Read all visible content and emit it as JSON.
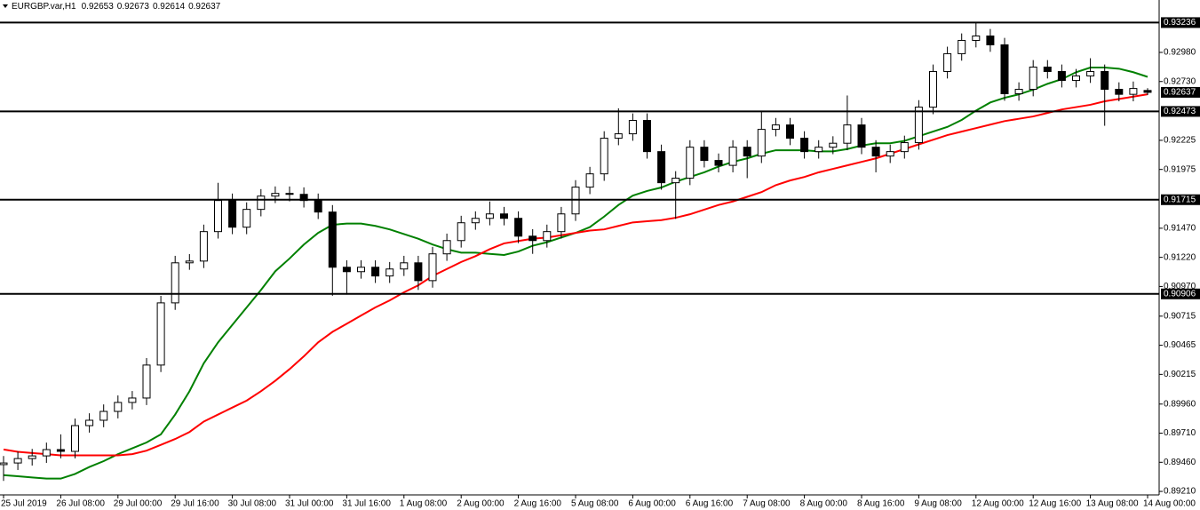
{
  "chart_data": {
    "type": "candlestick",
    "symbol": "EURGBP.var,H1",
    "categories": [
      "25 Jul 2019",
      null,
      null,
      null,
      "26 Jul 08:00",
      null,
      null,
      null,
      "29 Jul 00:00",
      null,
      null,
      null,
      "29 Jul 16:00",
      null,
      null,
      null,
      "30 Jul 08:00",
      null,
      null,
      null,
      "31 Jul 00:00",
      null,
      null,
      null,
      "31 Jul 16:00",
      null,
      null,
      null,
      "1 Aug 08:00",
      null,
      null,
      null,
      "2 Aug 00:00",
      null,
      null,
      null,
      "2 Aug 16:00",
      null,
      null,
      null,
      "5 Aug 08:00",
      null,
      null,
      null,
      "6 Aug 00:00",
      null,
      null,
      null,
      "6 Aug 16:00",
      null,
      null,
      null,
      "7 Aug 08:00",
      null,
      null,
      null,
      "8 Aug 00:00",
      null,
      null,
      null,
      "8 Aug 16:00",
      null,
      null,
      null,
      "9 Aug 08:00",
      null,
      null,
      null,
      "12 Aug 00:00",
      null,
      null,
      null,
      "12 Aug 16:00",
      null,
      null,
      null,
      "13 Aug 08:00",
      null,
      null,
      null,
      "14 Aug 00:00"
    ],
    "candles": {
      "open": [
        0.8944,
        0.89454,
        0.89492,
        0.89515,
        0.89569,
        0.89554,
        0.89775,
        0.89821,
        0.89897,
        0.89974,
        0.90012,
        0.90295,
        0.90829,
        0.91173,
        0.91188,
        0.91441,
        0.91708,
        0.91479,
        0.91632,
        0.91746,
        0.91769,
        0.91761,
        0.91708,
        0.91609,
        0.91135,
        0.91097,
        0.91135,
        0.9106,
        0.9112,
        0.91173,
        0.9102,
        0.9125,
        0.91364,
        0.91517,
        0.91555,
        0.91593,
        0.91555,
        0.91402,
        0.91364,
        0.91441,
        0.91593,
        0.91823,
        0.91937,
        0.92243,
        0.92281,
        0.92396,
        0.92128,
        0.91861,
        0.919,
        0.92166,
        0.92052,
        0.9201,
        0.92166,
        0.9209,
        0.92319,
        0.92357,
        0.92243,
        0.92128,
        0.92166,
        0.922,
        0.92357,
        0.92166,
        0.9209,
        0.92128,
        0.92205,
        0.9251,
        0.92816,
        0.92969,
        0.93083,
        0.93121,
        0.93045,
        0.92625,
        0.92663,
        0.92854,
        0.92816,
        0.92739,
        0.92778,
        0.92816,
        0.92663,
        0.9262,
        0.92653
      ],
      "high": [
        0.89514,
        0.89552,
        0.89575,
        0.89629,
        0.897,
        0.89835,
        0.89881,
        0.89957,
        0.90034,
        0.90072,
        0.90355,
        0.90889,
        0.91233,
        0.91248,
        0.91501,
        0.9186,
        0.91768,
        0.91692,
        0.91806,
        0.91829,
        0.91829,
        0.91821,
        0.91768,
        0.91669,
        0.91195,
        0.91195,
        0.91195,
        0.9118,
        0.91233,
        0.91233,
        0.9131,
        0.91424,
        0.91577,
        0.91615,
        0.917,
        0.91653,
        0.91615,
        0.91462,
        0.91501,
        0.91653,
        0.91883,
        0.91997,
        0.92303,
        0.925,
        0.92456,
        0.92456,
        0.92188,
        0.9196,
        0.92226,
        0.92226,
        0.92112,
        0.92226,
        0.92226,
        0.92473,
        0.92417,
        0.92417,
        0.92303,
        0.92226,
        0.9226,
        0.9261,
        0.92417,
        0.92226,
        0.92188,
        0.92265,
        0.9257,
        0.92876,
        0.93029,
        0.93143,
        0.93236,
        0.93181,
        0.93105,
        0.92723,
        0.92914,
        0.92914,
        0.92876,
        0.92838,
        0.9293,
        0.92876,
        0.92723,
        0.9273,
        0.92673
      ],
      "low": [
        0.893,
        0.89394,
        0.89432,
        0.89455,
        0.89494,
        0.89494,
        0.89715,
        0.89761,
        0.89837,
        0.89914,
        0.89952,
        0.90235,
        0.90769,
        0.91113,
        0.91128,
        0.91381,
        0.91419,
        0.91419,
        0.91572,
        0.91686,
        0.91701,
        0.91648,
        0.91549,
        0.9089,
        0.909,
        0.91037,
        0.91,
        0.91,
        0.9106,
        0.9094,
        0.9096,
        0.9119,
        0.91304,
        0.91457,
        0.91495,
        0.91495,
        0.91342,
        0.9125,
        0.91304,
        0.91381,
        0.91533,
        0.91763,
        0.91877,
        0.92183,
        0.92221,
        0.92068,
        0.91801,
        0.9155,
        0.9184,
        0.91992,
        0.9195,
        0.9195,
        0.919,
        0.9203,
        0.92259,
        0.92183,
        0.92068,
        0.92068,
        0.92106,
        0.9214,
        0.92106,
        0.9195,
        0.9203,
        0.92068,
        0.92145,
        0.9245,
        0.92756,
        0.92909,
        0.93023,
        0.92985,
        0.92565,
        0.92565,
        0.92603,
        0.92756,
        0.92679,
        0.92679,
        0.92718,
        0.9235,
        0.9256,
        0.9256,
        0.92614
      ],
      "close": [
        0.89454,
        0.89492,
        0.89515,
        0.89569,
        0.89554,
        0.89775,
        0.89821,
        0.89897,
        0.89974,
        0.90012,
        0.90295,
        0.90829,
        0.91173,
        0.91188,
        0.91441,
        0.91708,
        0.91479,
        0.91632,
        0.91746,
        0.91769,
        0.91761,
        0.91708,
        0.91609,
        0.91135,
        0.91097,
        0.91135,
        0.9106,
        0.9112,
        0.91173,
        0.9102,
        0.9125,
        0.91364,
        0.91517,
        0.91555,
        0.91593,
        0.91555,
        0.91402,
        0.91364,
        0.91441,
        0.91593,
        0.91823,
        0.91937,
        0.92243,
        0.92281,
        0.92396,
        0.92128,
        0.91861,
        0.919,
        0.92166,
        0.92052,
        0.9201,
        0.92166,
        0.9209,
        0.92319,
        0.92357,
        0.92243,
        0.92128,
        0.92166,
        0.922,
        0.92357,
        0.92166,
        0.9209,
        0.92128,
        0.92205,
        0.9251,
        0.92816,
        0.92969,
        0.93083,
        0.93121,
        0.93045,
        0.92625,
        0.92663,
        0.92854,
        0.92816,
        0.92739,
        0.92778,
        0.92816,
        0.92663,
        0.9262,
        0.9267,
        0.92637
      ]
    },
    "up_color": "#ffffff",
    "down_color": "#000000",
    "series": [
      {
        "type": "line",
        "color": "#008000",
        "values": [
          0.8935,
          0.8934,
          0.8933,
          0.8932,
          0.8932,
          0.8936,
          0.8942,
          0.8947,
          0.8953,
          0.8958,
          0.8963,
          0.897,
          0.8987,
          0.9007,
          0.9031,
          0.9049,
          0.9064,
          0.9079,
          0.9094,
          0.911,
          0.9121,
          0.9133,
          0.9143,
          0.915,
          0.9151,
          0.9151,
          0.9149,
          0.9146,
          0.9142,
          0.9138,
          0.9133,
          0.9129,
          0.9126,
          0.9126,
          0.9125,
          0.9124,
          0.9127,
          0.9132,
          0.9135,
          0.9139,
          0.9143,
          0.9148,
          0.9157,
          0.9167,
          0.9175,
          0.9179,
          0.9182,
          0.9187,
          0.9191,
          0.9195,
          0.92,
          0.9204,
          0.9207,
          0.9211,
          0.9214,
          0.9214,
          0.9214,
          0.9213,
          0.9213,
          0.9215,
          0.9218,
          0.922,
          0.922,
          0.9222,
          0.9226,
          0.923,
          0.9234,
          0.924,
          0.9248,
          0.9255,
          0.9259,
          0.9262,
          0.9266,
          0.9271,
          0.9275,
          0.9281,
          0.9285,
          0.9285,
          0.9284,
          0.9281,
          0.9277
        ]
      },
      {
        "type": "line",
        "color": "#ff0000",
        "values": [
          0.8957,
          0.8955,
          0.8954,
          0.8953,
          0.8952,
          0.8952,
          0.8952,
          0.8952,
          0.8952,
          0.8953,
          0.8956,
          0.8961,
          0.8966,
          0.8972,
          0.8981,
          0.8987,
          0.8993,
          0.8999,
          0.9007,
          0.9016,
          0.9026,
          0.9037,
          0.9049,
          0.9058,
          0.9065,
          0.9072,
          0.9079,
          0.9085,
          0.9092,
          0.9098,
          0.9106,
          0.9112,
          0.9118,
          0.9123,
          0.9129,
          0.9134,
          0.9136,
          0.9138,
          0.9139,
          0.9141,
          0.9143,
          0.9145,
          0.9146,
          0.9149,
          0.9152,
          0.9153,
          0.9154,
          0.9156,
          0.9159,
          0.9163,
          0.9167,
          0.917,
          0.9174,
          0.9178,
          0.9184,
          0.9188,
          0.9191,
          0.9195,
          0.9198,
          0.9201,
          0.9204,
          0.9207,
          0.9211,
          0.9215,
          0.9219,
          0.9223,
          0.9227,
          0.923,
          0.9233,
          0.9236,
          0.9239,
          0.9241,
          0.9243,
          0.9246,
          0.9249,
          0.9251,
          0.9253,
          0.9256,
          0.9258,
          0.926,
          0.9262
        ]
      }
    ],
    "hlines": [
      0.93236,
      0.92473,
      0.91715,
      0.90906
    ],
    "hline_color": "#000000",
    "ylim": [
      0.8918,
      0.9343
    ],
    "yticks": [
      {
        "value": 0.9298,
        "label": "0.92980"
      },
      {
        "value": 0.9273,
        "label": "0.92730"
      },
      0.92225,
      0.91975,
      {
        "value": 0.9147,
        "label": "0.91470"
      },
      {
        "value": 0.9122,
        "label": "0.91220"
      },
      {
        "value": 0.9097,
        "label": "0.90970"
      },
      0.90715,
      0.90465,
      0.90215,
      {
        "value": 0.8996,
        "label": "0.89960"
      },
      {
        "value": 0.8971,
        "label": "0.89710"
      },
      {
        "value": 0.8946,
        "label": "0.89460"
      },
      {
        "value": 0.8921,
        "label": "0.89210"
      }
    ],
    "grid": false
  }
}
